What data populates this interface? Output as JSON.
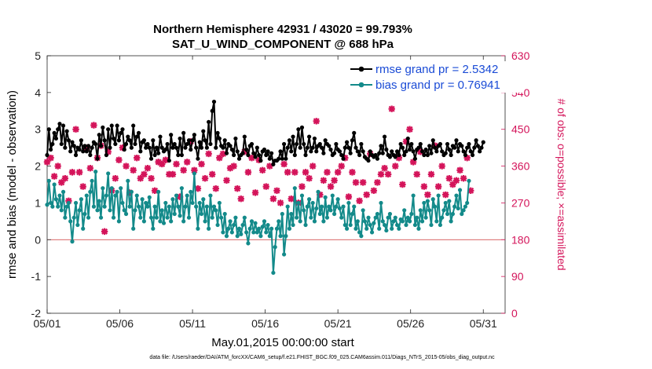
{
  "chart_data": {
    "type": "line",
    "title": "Northern Hemisphere 42931 / 43020 = 99.793%",
    "subtitle": "SAT_U_WIND_COMPONENT @ 688 hPa",
    "xlabel": "May.01,2015 00:00:00 start",
    "ylabel": "rmse and bias (model - observation)",
    "ylabel_right": "# of obs: o=possible; ×=assimilated",
    "x_ticks": [
      "05/01",
      "05/06",
      "05/11",
      "05/16",
      "05/21",
      "05/26",
      "05/31"
    ],
    "y_ticks": [
      "-2",
      "-1",
      "0",
      "1",
      "2",
      "3",
      "4",
      "5"
    ],
    "y_ticks_right": [
      "0",
      "90",
      "180",
      "270",
      "360",
      "450",
      "540",
      "630"
    ],
    "xlim": [
      0,
      31.5
    ],
    "ylim": [
      -2,
      5
    ],
    "ylim_right": [
      0,
      630
    ],
    "zero_line": 0,
    "footnote": "data file: /Users/raeder/DAI/ATM_forcXX/CAM6_setup/f.e21.FHIST_BGC.f09_025.CAM6assim.011/Diags_NTrS_2015-05/obs_diag_output.nc",
    "series": [
      {
        "name": "rmse grand pr = 2.5342",
        "color": "#000000",
        "values": [
          2.3,
          3.0,
          2.45,
          2.6,
          2.9,
          2.75,
          3.0,
          3.15,
          2.6,
          3.1,
          2.5,
          2.95,
          2.7,
          2.4,
          2.65,
          2.55,
          2.3,
          2.5,
          2.45,
          2.7,
          2.4,
          2.55,
          2.4,
          2.55,
          2.3,
          2.5,
          2.65,
          2.6,
          2.2,
          2.85,
          2.55,
          3.05,
          2.7,
          2.3,
          3.0,
          2.5,
          3.1,
          2.75,
          2.6,
          3.1,
          2.7,
          2.9,
          3.0,
          2.45,
          2.6,
          2.8,
          2.7,
          2.5,
          3.1,
          2.6,
          2.8,
          2.9,
          2.4,
          2.65,
          2.7,
          2.5,
          2.6,
          2.5,
          2.2,
          2.7,
          2.3,
          2.5,
          2.35,
          2.8,
          2.5,
          2.4,
          2.45,
          2.6,
          2.15,
          2.85,
          2.5,
          2.6,
          2.5,
          2.3,
          2.75,
          2.3,
          2.9,
          2.5,
          2.6,
          2.7,
          2.45,
          2.7,
          2.85,
          2.5,
          2.2,
          2.65,
          2.5,
          2.95,
          2.7,
          2.5,
          3.2,
          2.6,
          3.5,
          3.75,
          2.5,
          2.9,
          2.75,
          2.55,
          2.5,
          2.7,
          2.35,
          2.6,
          2.55,
          2.45,
          2.3,
          2.75,
          2.4,
          2.2,
          2.3,
          2.35,
          2.8,
          2.45,
          2.3,
          2.55,
          2.6,
          2.35,
          2.25,
          2.5,
          2.3,
          2.15,
          2.4,
          2.45,
          2.3,
          2.4,
          2.2,
          2.35,
          2.05,
          2.15,
          2.15,
          2.2,
          2.4,
          2.2,
          2.6,
          2.2,
          2.5,
          2.7,
          2.4,
          2.8,
          2.3,
          2.6,
          3.0,
          2.5,
          3.05,
          2.6,
          2.3,
          2.5,
          2.8,
          2.4,
          2.5,
          2.75,
          2.4,
          2.55,
          2.6,
          2.5,
          2.35,
          2.7,
          2.6,
          2.55,
          2.45,
          2.3,
          2.35,
          2.6,
          2.45,
          2.4,
          2.3,
          2.2,
          2.5,
          2.65,
          2.5,
          2.35,
          2.7,
          2.9,
          2.5,
          2.4,
          2.3,
          2.6,
          2.4,
          2.25,
          2.2,
          2.15,
          2.4,
          2.3,
          2.25,
          2.3,
          2.2,
          2.35,
          2.55,
          2.35,
          2.8,
          2.45,
          2.3,
          2.25,
          2.4,
          2.3,
          2.25,
          2.4,
          2.3,
          2.6,
          2.5,
          2.3,
          2.4,
          2.75,
          2.45,
          2.6,
          2.4,
          2.2,
          2.45,
          2.5,
          2.6,
          2.4,
          2.3,
          2.45,
          2.3,
          2.55,
          2.35,
          2.7,
          2.5,
          2.4,
          2.55,
          2.6,
          2.4,
          2.3,
          2.35,
          2.6,
          2.45,
          2.3,
          2.55,
          2.5,
          2.7,
          2.4,
          2.6,
          2.55,
          2.4,
          2.3,
          2.5,
          2.6,
          2.4,
          2.3,
          2.5,
          2.7,
          2.55,
          2.4,
          2.5,
          2.65
        ]
      },
      {
        "name": "bias grand pr = 0.76941",
        "color": "#138a8a",
        "values": [
          0.95,
          1.6,
          1.0,
          0.9,
          1.5,
          1.1,
          0.9,
          1.2,
          0.8,
          1.3,
          0.6,
          0.9,
          1.0,
          0.5,
          -0.05,
          0.6,
          1.0,
          0.4,
          0.8,
          1.1,
          0.3,
          0.7,
          1.2,
          0.6,
          1.3,
          1.6,
          0.9,
          1.85,
          0.8,
          1.05,
          0.6,
          1.4,
          0.9,
          1.2,
          1.8,
          0.8,
          1.4,
          0.6,
          1.2,
          1.3,
          0.5,
          1.4,
          1.0,
          0.8,
          0.7,
          1.6,
          0.9,
          1.3,
          0.3,
          0.8,
          1.2,
          0.9,
          0.6,
          1.1,
          0.5,
          1.0,
          0.9,
          1.15,
          0.6,
          0.3,
          0.9,
          0.6,
          1.3,
          0.5,
          0.8,
          0.45,
          1.0,
          0.6,
          0.9,
          0.5,
          1.1,
          0.7,
          1.2,
          0.9,
          0.65,
          1.4,
          0.5,
          0.9,
          1.2,
          0.6,
          1.3,
          1.0,
          1.8,
          0.9,
          0.3,
          1.0,
          0.7,
          1.1,
          0.5,
          0.9,
          0.3,
          1.2,
          0.6,
          0.9,
          0.8,
          0.4,
          1.0,
          0.6,
          0.2,
          0.7,
          0.1,
          0.3,
          0.5,
          0.2,
          0.4,
          0.6,
          0.1,
          0.3,
          0.15,
          0.4,
          0.6,
          0.2,
          -0.1,
          0.3,
          0.5,
          0.2,
          0.45,
          0.2,
          0.3,
          0.1,
          0.35,
          0.5,
          0.2,
          0.4,
          0.1,
          0.3,
          -0.9,
          -0.2,
          0.3,
          0.5,
          0.1,
          0.7,
          -0.4,
          0.1,
          0.9,
          0.3,
          0.7,
          0.4,
          1.4,
          0.6,
          1.0,
          0.5,
          1.2,
          0.8,
          0.4,
          0.9,
          1.1,
          0.6,
          1.0,
          0.5,
          0.85,
          1.3,
          0.7,
          0.9,
          0.5,
          1.15,
          0.6,
          0.9,
          0.8,
          1.2,
          0.7,
          0.9,
          1.1,
          0.85,
          0.6,
          0.9,
          0.4,
          0.3,
          1.0,
          0.4,
          0.7,
          0.9,
          0.3,
          0.5,
          0.2,
          0.1,
          0.8,
          0.5,
          0.3,
          0.6,
          0.4,
          0.2,
          0.45,
          0.6,
          0.7,
          0.3,
          1.0,
          0.5,
          0.4,
          0.25,
          0.6,
          0.7,
          0.3,
          0.5,
          0.6,
          0.4,
          0.3,
          0.55,
          0.5,
          0.8,
          0.4,
          0.6,
          0.5,
          0.7,
          1.2,
          0.4,
          0.6,
          0.3,
          0.8,
          0.5,
          1.0,
          0.6,
          1.05,
          0.8,
          0.4,
          1.1,
          0.9,
          0.5,
          1.2,
          0.4,
          0.6,
          0.8,
          1.0,
          0.7,
          1.05,
          0.5,
          0.7,
          0.9,
          1.2,
          0.85,
          1.35,
          0.7,
          0.8,
          0.9,
          1.0,
          1.6
        ]
      },
      {
        "name": "obs possible",
        "color": "#d4145a",
        "values": [
          370,
          345,
          380,
          325,
          335,
          400,
          360,
          375,
          320,
          345,
          330,
          350,
          275,
          300,
          345,
          440,
          450,
          455,
          345,
          330,
          310,
          370,
          405,
          415,
          355,
          430,
          460,
          420,
          380,
          435,
          410,
          455,
          200,
          440,
          395,
          440,
          300,
          350,
          330,
          360,
          375,
          265,
          405,
          420,
          360,
          335,
          295,
          360,
          350,
          310,
          380,
          360,
          330,
          290,
          340,
          375,
          355,
          310,
          330,
          365,
          300,
          325,
          370,
          330,
          365,
          270,
          375,
          380,
          340,
          225,
          340,
          395,
          365,
          360,
          285,
          385,
          350,
          330,
          370,
          300,
          420,
          375,
          350,
          380,
          305,
          395,
          365,
          350,
          330,
          300,
          390,
          370,
          340,
          375,
          305,
          285,
          380,
          345,
          390,
          360,
          325,
          300,
          355,
          385,
          360,
          340,
          305,
          330,
          280,
          320,
          395,
          340,
          345,
          325,
          380,
          310,
          295,
          335,
          375,
          350,
          350,
          285,
          310,
          330,
          360,
          270,
          280,
          230,
          300,
          310,
          270,
          265,
          365,
          300,
          345,
          330,
          280,
          320,
          345,
          380,
          270,
          295,
          310,
          255,
          345,
          330,
          330,
          275,
          360,
          300,
          470,
          345,
          290,
          375,
          325,
          300,
          345,
          340,
          310,
          270,
          325,
          300,
          345,
          295,
          360,
          410,
          380,
          335,
          285,
          310,
          345,
          370,
          320,
          295,
          275,
          310,
          320,
          345,
          290,
          360,
          390,
          340,
          300,
          350,
          320,
          355,
          340,
          300,
          355,
          300,
          340,
          460,
          500,
          470,
          360,
          310,
          380,
          350,
          315,
          300,
          420,
          340,
          450,
          455,
          370,
          290,
          340,
          400,
          395,
          330,
          310,
          340,
          290,
          355,
          340,
          365,
          410,
          325,
          310,
          300,
          360,
          350,
          290,
          380,
          330,
          295,
          315,
          310,
          325,
          290,
          350,
          415,
          330,
          310,
          380,
          350,
          300,
          195
        ]
      }
    ]
  }
}
